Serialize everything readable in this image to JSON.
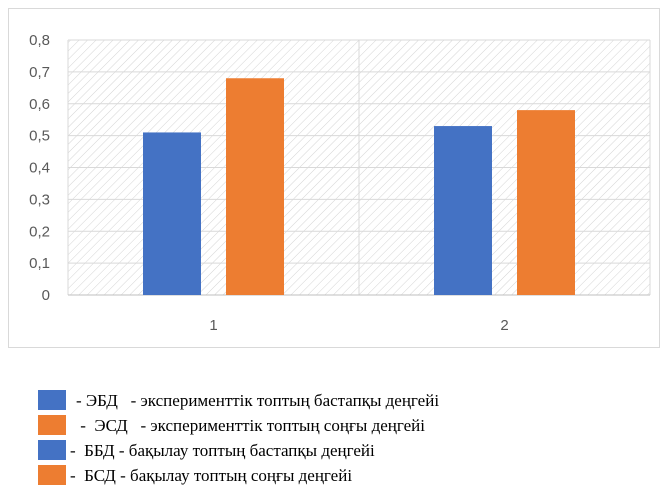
{
  "chart_data": {
    "type": "bar",
    "categories": [
      "1",
      "2"
    ],
    "series": [
      {
        "values": [
          0.51,
          0.53
        ],
        "color": "#4472c4"
      },
      {
        "values": [
          0.68,
          0.58
        ],
        "color": "#ed7d31"
      }
    ],
    "ylim": [
      0,
      0.8
    ],
    "yticks": [
      "0",
      "0,1",
      "0,2",
      "0,3",
      "0,4",
      "0,5",
      "0,6",
      "0,7",
      "0,8"
    ],
    "grid": true,
    "plot_pattern": "diagonal-hatch",
    "legend_position": "below"
  },
  "legend": [
    {
      "text": "- ЭБД   - эксперименттік топтың бастапқы деңгейі",
      "color": "#4472c4"
    },
    {
      "text": " -  ЭСД   - эксперименттік топтың соңғы деңгейі",
      "color": "#ed7d31"
    },
    {
      "text": "-  ББД - бақылау топтың бастапқы деңгейі",
      "color": "#4472c4"
    },
    {
      "text": "-  БСД - бақылау топтың соңғы деңгейі",
      "color": "#ed7d31"
    }
  ]
}
